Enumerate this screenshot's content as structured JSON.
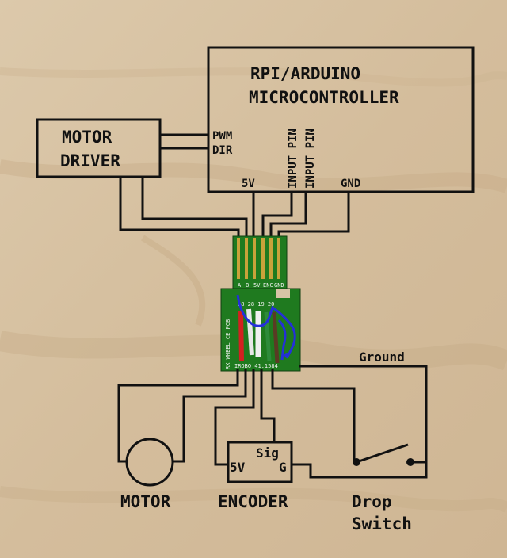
{
  "microcontroller": {
    "line1": "RPI/ARDUINO",
    "line2": "MICROCONTROLLER"
  },
  "motor_driver": {
    "line1": "MOTOR",
    "line2": "DRIVER"
  },
  "mcu_pins": {
    "pwm": "PWM",
    "dir": "DIR",
    "v5": "5V",
    "input_pin_1": "INPUT PIN",
    "input_pin_2": "INPUT PIN",
    "gnd": "GND"
  },
  "ground_label": "Ground",
  "encoder": {
    "label": "ENCODER",
    "sig": "Sig",
    "v5": "5V",
    "g": "G"
  },
  "motor_label": "MOTOR",
  "drop_switch": {
    "line1": "Drop",
    "line2": "Switch"
  },
  "pcb": {
    "pin_labels": [
      "A",
      "B",
      "5V",
      "ENC",
      "GND"
    ],
    "row1": "28 28 19 20",
    "side_text": "RX WHEEL CE PCB",
    "bottom_text": "IROBO 41.1584"
  },
  "colors": {
    "ink": "#111111",
    "pcb_green": "#1f7a1f",
    "wire_blue": "#2430d8",
    "wire_red": "#d32020",
    "pad_gold": "#c9a23a"
  }
}
